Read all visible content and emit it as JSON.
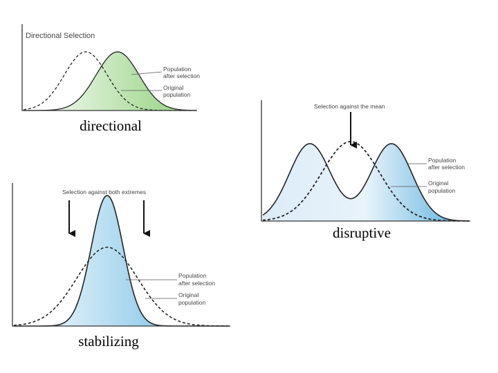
{
  "panels": [
    {
      "title": "Directional Selection",
      "after_label": [
        "Population",
        "after selection"
      ],
      "original_label": [
        "Original",
        "population"
      ],
      "caption": "directional"
    },
    {
      "heading": "Selection against the mean",
      "after_label": [
        "Population",
        "after selection"
      ],
      "original_label": [
        "Original",
        "population"
      ],
      "caption": "disruptive"
    },
    {
      "heading": "Selection against both extremes",
      "after_label": [
        "Population",
        "after selection"
      ],
      "original_label": [
        "Original",
        "population"
      ],
      "caption": "stabilizing"
    }
  ]
}
